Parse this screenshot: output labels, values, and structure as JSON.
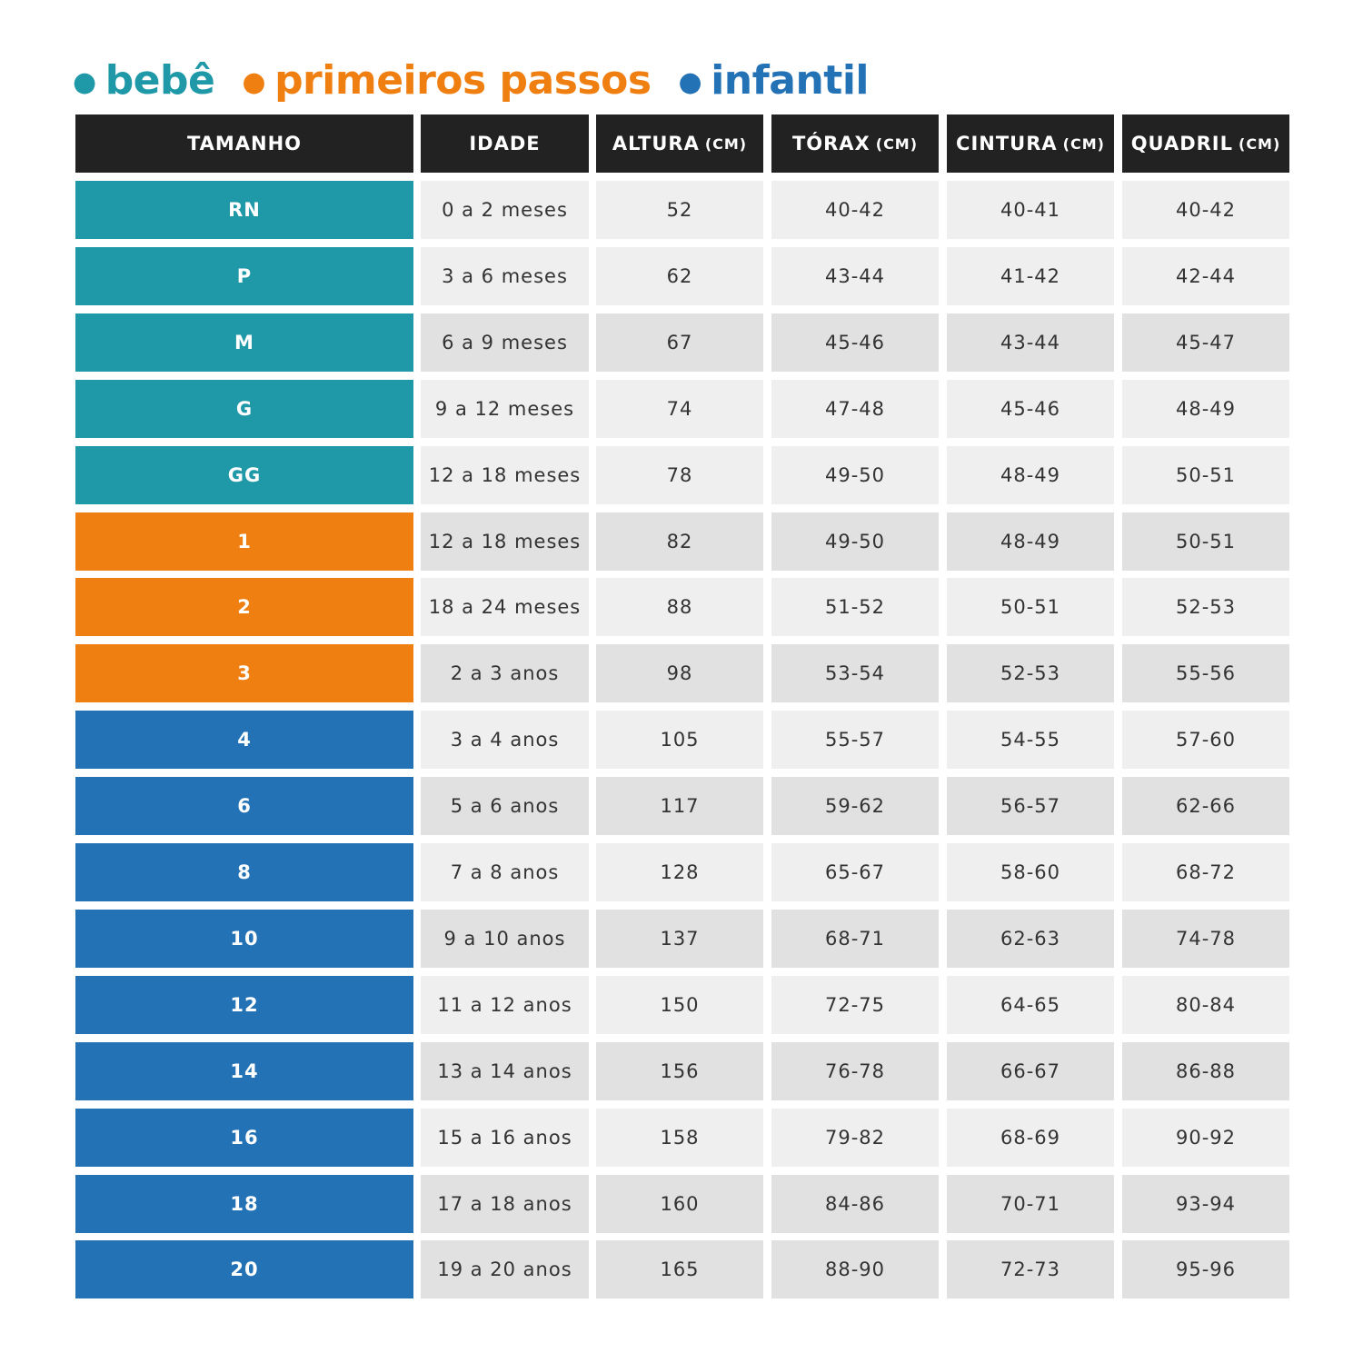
{
  "header": {
    "columns": [
      {
        "label": "TAMANHO"
      },
      {
        "label": "IDADE"
      },
      {
        "label": "ALTURA",
        "unit": "(CM)"
      },
      {
        "label": "TÓRAX",
        "unit": "(CM)"
      },
      {
        "label": "CINTURA",
        "unit": "(CM)"
      },
      {
        "label": "QUADRIL",
        "unit": "(CM)"
      }
    ]
  },
  "groups": [
    {
      "name": "bebê",
      "color": "#1f98a8",
      "rows": [
        [
          "RN",
          "0 a 2 meses",
          "52",
          "40-42",
          "40-41",
          "40-42"
        ],
        [
          "P",
          "3 a 6 meses",
          "62",
          "43-44",
          "41-42",
          "42-44"
        ],
        [
          "M",
          "6 a 9 meses",
          "67",
          "45-46",
          "43-44",
          "45-47"
        ],
        [
          "G",
          "9 a 12 meses",
          "74",
          "47-48",
          "45-46",
          "48-49"
        ],
        [
          "GG",
          "12 a 18 meses",
          "78",
          "49-50",
          "48-49",
          "50-51"
        ]
      ]
    },
    {
      "name": "primeiros passos",
      "color": "#f07f11",
      "rows": [
        [
          "1",
          "12 a 18 meses",
          "82",
          "49-50",
          "48-49",
          "50-51"
        ],
        [
          "2",
          "18 a 24 meses",
          "88",
          "51-52",
          "50-51",
          "52-53"
        ],
        [
          "3",
          "2 a 3 anos",
          "98",
          "53-54",
          "52-53",
          "55-56"
        ]
      ]
    },
    {
      "name": "infantil",
      "color": "#2472b6",
      "rows": [
        [
          "4",
          "3 a 4 anos",
          "105",
          "55-57",
          "54-55",
          "57-60"
        ],
        [
          "6",
          "5 a 6 anos",
          "117",
          "59-62",
          "56-57",
          "62-66"
        ],
        [
          "8",
          "7 a 8 anos",
          "128",
          "65-67",
          "58-60",
          "68-72"
        ],
        [
          "10",
          "9 a 10 anos",
          "137",
          "68-71",
          "62-63",
          "74-78"
        ],
        [
          "12",
          "11 a 12 anos",
          "150",
          "72-75",
          "64-65",
          "80-84"
        ],
        [
          "14",
          "13 a 14 anos",
          "156",
          "76-78",
          "66-67",
          "86-88"
        ],
        [
          "16",
          "15 a 16 anos",
          "158",
          "79-82",
          "68-69",
          "90-92"
        ],
        [
          "18",
          "17 a 18 anos",
          "160",
          "84-86",
          "70-71",
          "93-94"
        ],
        [
          "20",
          "19 a 20 anos",
          "165",
          "88-90",
          "72-73",
          "95-96"
        ]
      ]
    }
  ]
}
